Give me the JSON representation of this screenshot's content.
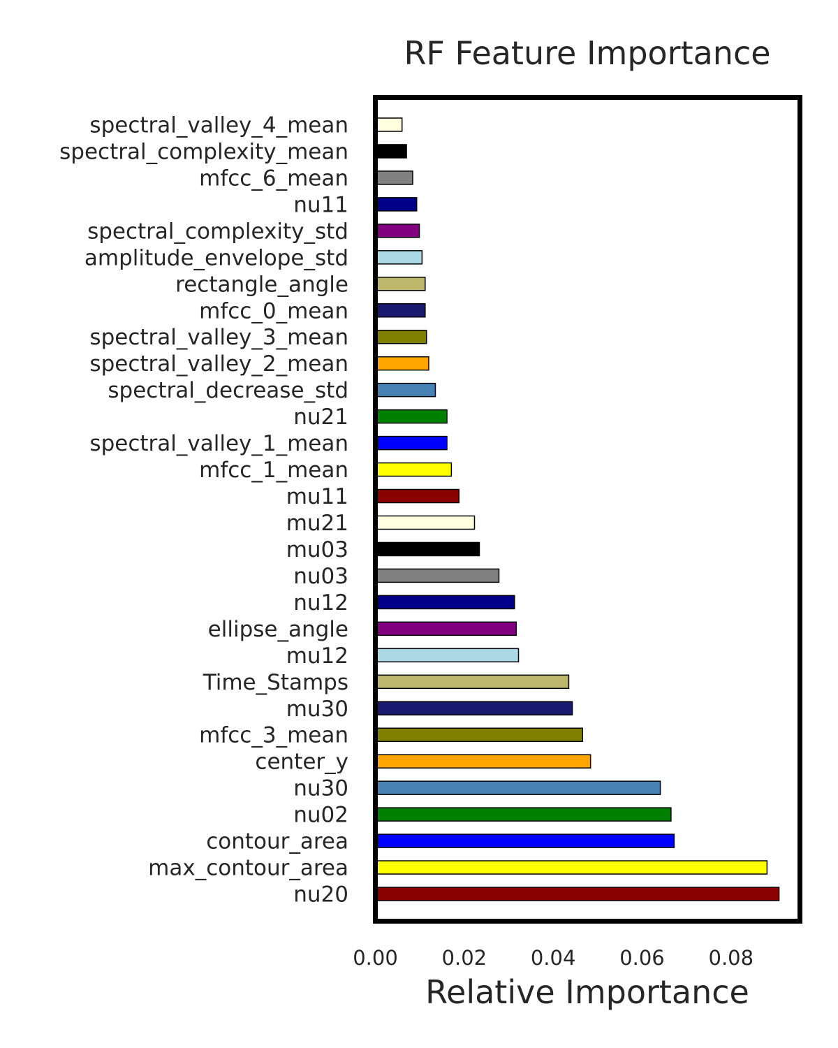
{
  "chart_data": {
    "type": "bar",
    "orientation": "horizontal",
    "title": "RF Feature Importance",
    "xlabel": "Relative Importance",
    "ylabel": "",
    "xlim": [
      0,
      0.0955
    ],
    "xticks": [
      "0.00",
      "0.02",
      "0.04",
      "0.06",
      "0.08"
    ],
    "xtick_values": [
      0,
      0.02,
      0.04,
      0.06,
      0.08
    ],
    "grid": false,
    "bar_edge_color": "#000000",
    "frame_color": "#000000",
    "categories": [
      "nu20",
      "max_contour_area",
      "contour_area",
      "nu02",
      "nu30",
      "center_y",
      "mfcc_3_mean",
      "mu30",
      "Time_Stamps",
      "mu12",
      "ellipse_angle",
      "nu12",
      "nu03",
      "mu03",
      "mu21",
      "mu11",
      "mfcc_1_mean",
      "spectral_valley_1_mean",
      "nu21",
      "spectral_decrease_std",
      "spectral_valley_2_mean",
      "spectral_valley_3_mean",
      "mfcc_0_mean",
      "rectangle_angle",
      "amplitude_envelope_std",
      "spectral_complexity_std",
      "nu11",
      "mfcc_6_mean",
      "spectral_complexity_mean",
      "spectral_valley_4_mean"
    ],
    "values": [
      0.0908,
      0.0881,
      0.0672,
      0.0665,
      0.0641,
      0.0484,
      0.0466,
      0.0443,
      0.0435,
      0.0322,
      0.0317,
      0.0313,
      0.0278,
      0.0234,
      0.0223,
      0.0188,
      0.0171,
      0.0161,
      0.0161,
      0.0135,
      0.012,
      0.0115,
      0.0112,
      0.0112,
      0.0105,
      0.0099,
      0.0093,
      0.0084,
      0.007,
      0.006
    ],
    "colors": [
      "#8b0000",
      "#ffff00",
      "#0000ff",
      "#008000",
      "#4682b4",
      "#ffa500",
      "#808000",
      "#191970",
      "#bdb76b",
      "#add8e6",
      "#800080",
      "#00008b",
      "#808080",
      "#000000",
      "#ffffe0",
      "#8b0000",
      "#ffff00",
      "#0000ff",
      "#008000",
      "#4682b4",
      "#ffa500",
      "#808000",
      "#191970",
      "#bdb76b",
      "#add8e6",
      "#800080",
      "#00008b",
      "#808080",
      "#000000",
      "#ffffe0"
    ]
  }
}
